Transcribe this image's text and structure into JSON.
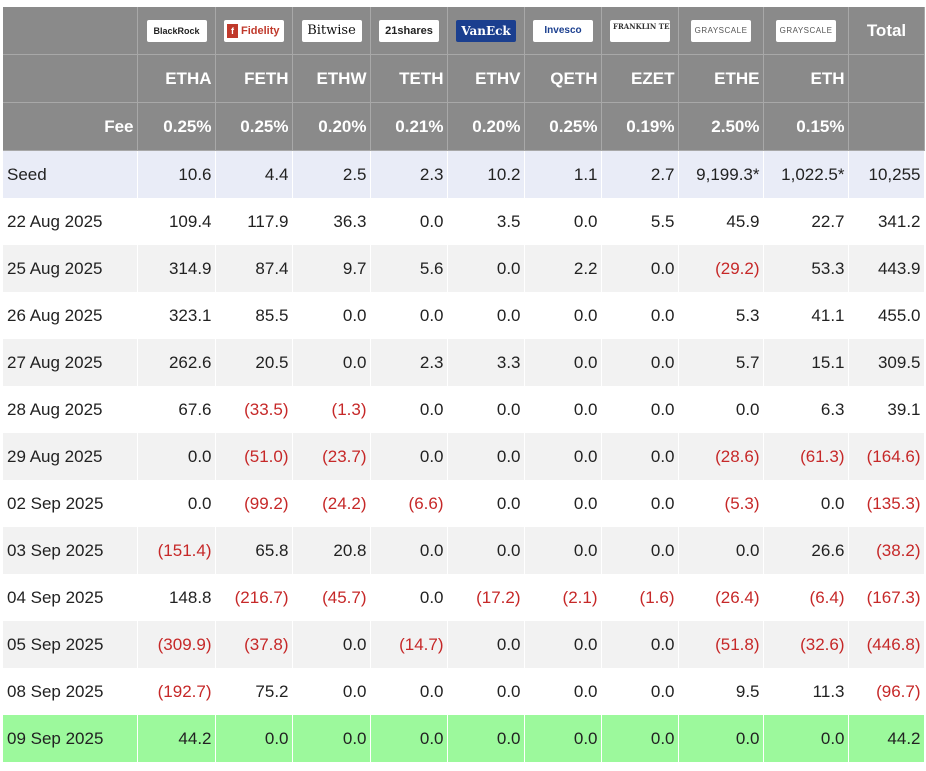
{
  "header": {
    "issuers": [
      {
        "name": "BlackRock",
        "icon": "blackrock-logo"
      },
      {
        "name": "Fidelity",
        "icon": "fidelity-logo"
      },
      {
        "name": "Bitwise",
        "icon": "bitwise-logo"
      },
      {
        "name": "21shares",
        "icon": "21shares-logo"
      },
      {
        "name": "VanEck",
        "icon": "vaneck-logo"
      },
      {
        "name": "Invesco",
        "icon": "invesco-logo"
      },
      {
        "name": "FRANKLIN TEMPLETON",
        "icon": "franklin-templeton-logo"
      },
      {
        "name": "GRAYSCALE",
        "icon": "grayscale-logo"
      },
      {
        "name": "GRAYSCALE",
        "icon": "grayscale-logo"
      }
    ],
    "total_label": "Total",
    "tickers": [
      "ETHA",
      "FETH",
      "ETHW",
      "TETH",
      "ETHV",
      "QETH",
      "EZET",
      "ETHE",
      "ETH"
    ],
    "fee_label": "Fee",
    "fees": [
      "0.25%",
      "0.25%",
      "0.20%",
      "0.21%",
      "0.20%",
      "0.25%",
      "0.19%",
      "2.50%",
      "0.15%"
    ]
  },
  "rows": [
    {
      "label": "Seed",
      "kind": "seed",
      "cells": [
        "10.6",
        "4.4",
        "2.5",
        "2.3",
        "10.2",
        "1.1",
        "2.7",
        "9,199.3*",
        "1,022.5*",
        "10,255"
      ]
    },
    {
      "label": "22 Aug 2025",
      "kind": "odd",
      "cells": [
        "109.4",
        "117.9",
        "36.3",
        "0.0",
        "3.5",
        "0.0",
        "5.5",
        "45.9",
        "22.7",
        "341.2"
      ]
    },
    {
      "label": "25 Aug 2025",
      "kind": "even",
      "cells": [
        "314.9",
        "87.4",
        "9.7",
        "5.6",
        "0.0",
        "2.2",
        "0.0",
        "(29.2)",
        "53.3",
        "443.9"
      ]
    },
    {
      "label": "26 Aug 2025",
      "kind": "odd",
      "cells": [
        "323.1",
        "85.5",
        "0.0",
        "0.0",
        "0.0",
        "0.0",
        "0.0",
        "5.3",
        "41.1",
        "455.0"
      ]
    },
    {
      "label": "27 Aug 2025",
      "kind": "even",
      "cells": [
        "262.6",
        "20.5",
        "0.0",
        "2.3",
        "3.3",
        "0.0",
        "0.0",
        "5.7",
        "15.1",
        "309.5"
      ]
    },
    {
      "label": "28 Aug 2025",
      "kind": "odd",
      "cells": [
        "67.6",
        "(33.5)",
        "(1.3)",
        "0.0",
        "0.0",
        "0.0",
        "0.0",
        "0.0",
        "6.3",
        "39.1"
      ]
    },
    {
      "label": "29 Aug 2025",
      "kind": "even",
      "cells": [
        "0.0",
        "(51.0)",
        "(23.7)",
        "0.0",
        "0.0",
        "0.0",
        "0.0",
        "(28.6)",
        "(61.3)",
        "(164.6)"
      ]
    },
    {
      "label": "02 Sep 2025",
      "kind": "odd",
      "cells": [
        "0.0",
        "(99.2)",
        "(24.2)",
        "(6.6)",
        "0.0",
        "0.0",
        "0.0",
        "(5.3)",
        "0.0",
        "(135.3)"
      ]
    },
    {
      "label": "03 Sep 2025",
      "kind": "even",
      "cells": [
        "(151.4)",
        "65.8",
        "20.8",
        "0.0",
        "0.0",
        "0.0",
        "0.0",
        "0.0",
        "26.6",
        "(38.2)"
      ]
    },
    {
      "label": "04 Sep 2025",
      "kind": "odd",
      "cells": [
        "148.8",
        "(216.7)",
        "(45.7)",
        "0.0",
        "(17.2)",
        "(2.1)",
        "(1.6)",
        "(26.4)",
        "(6.4)",
        "(167.3)"
      ]
    },
    {
      "label": "05 Sep 2025",
      "kind": "even",
      "cells": [
        "(309.9)",
        "(37.8)",
        "0.0",
        "(14.7)",
        "0.0",
        "0.0",
        "0.0",
        "(51.8)",
        "(32.6)",
        "(446.8)"
      ]
    },
    {
      "label": "08 Sep 2025",
      "kind": "odd",
      "cells": [
        "(192.7)",
        "75.2",
        "0.0",
        "0.0",
        "0.0",
        "0.0",
        "0.0",
        "9.5",
        "11.3",
        "(96.7)"
      ]
    },
    {
      "label": "09 Sep 2025",
      "kind": "latest",
      "cells": [
        "44.2",
        "0.0",
        "0.0",
        "0.0",
        "0.0",
        "0.0",
        "0.0",
        "0.0",
        "0.0",
        "44.2"
      ]
    }
  ],
  "colors": {
    "header_bg": "#8a8a8a",
    "seed_bg": "#e9ecf7",
    "alt_row_bg": "#f2f2f2",
    "latest_row_bg": "#9cf99c",
    "negative_text": "#c62828"
  }
}
